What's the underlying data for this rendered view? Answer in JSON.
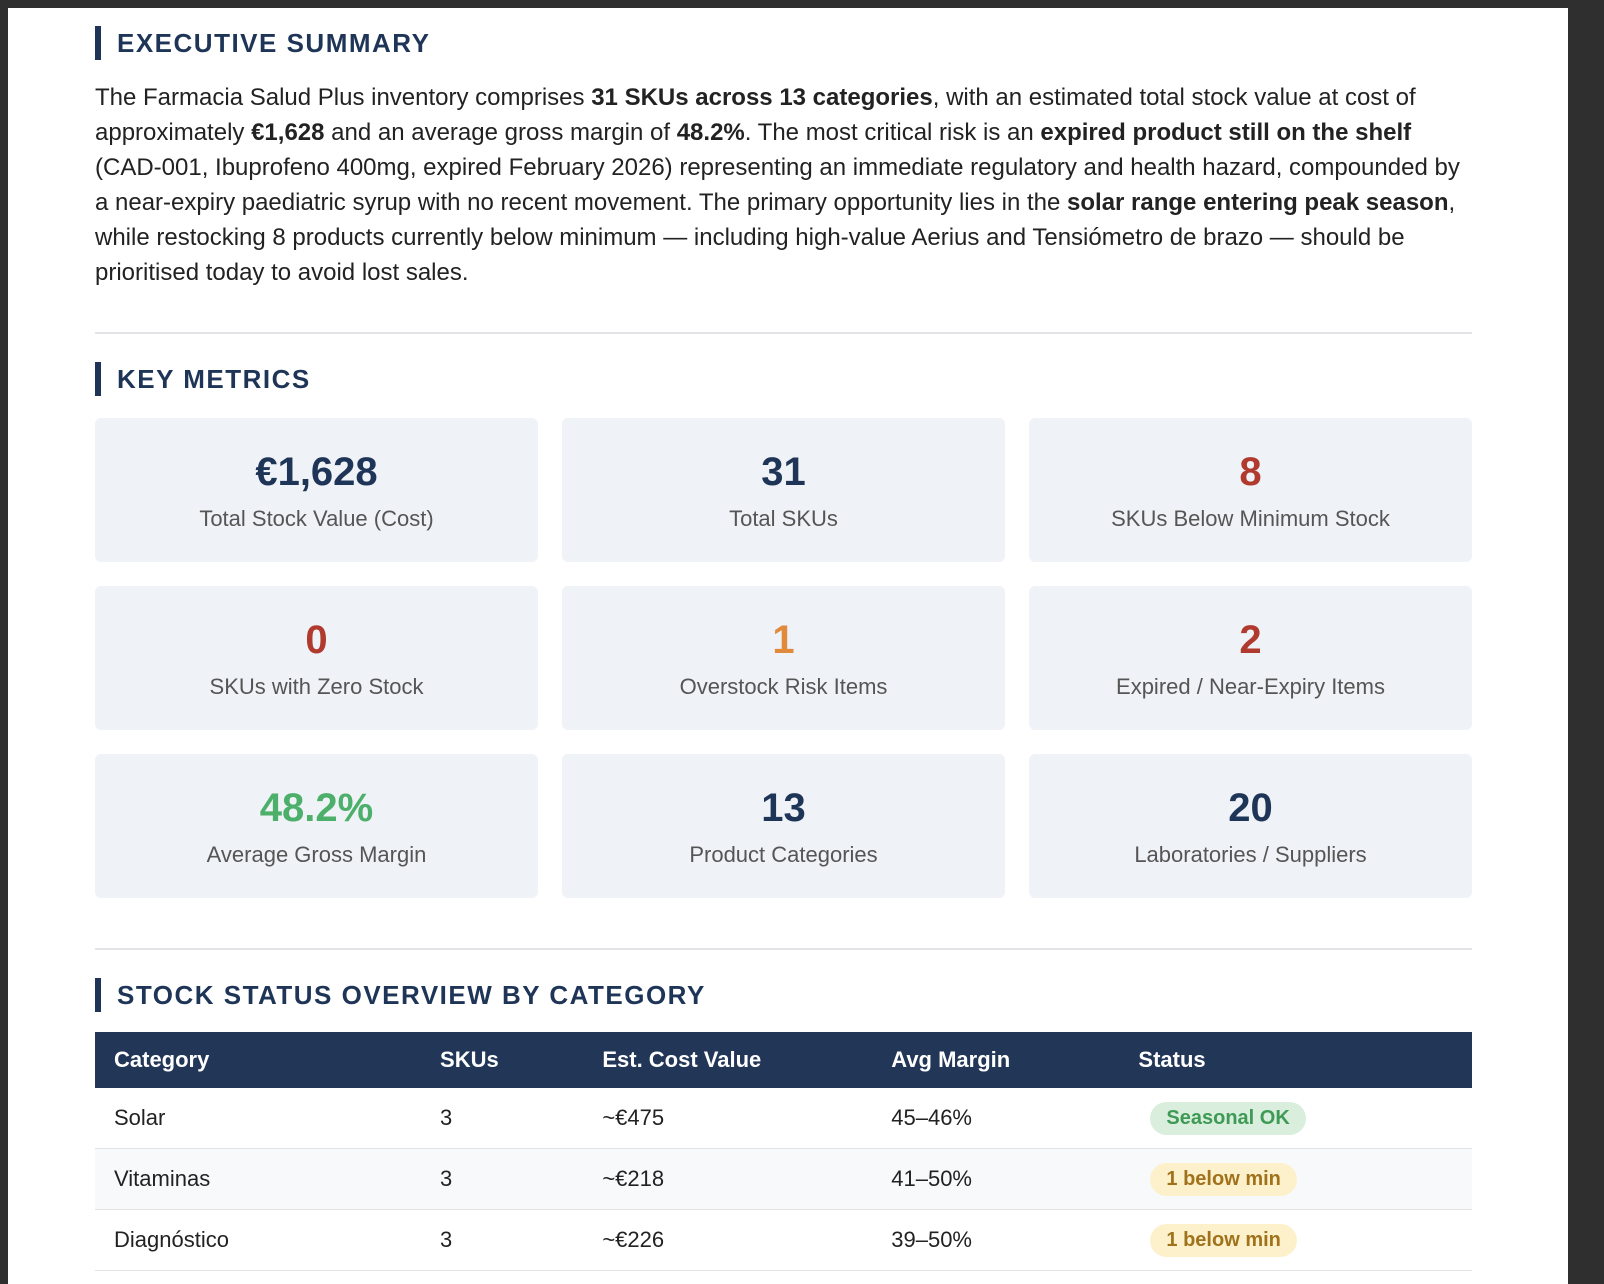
{
  "executive_summary": {
    "title": "EXECUTIVE SUMMARY",
    "paragraph": [
      {
        "text": "The Farmacia Salud Plus inventory comprises ",
        "bold": false
      },
      {
        "text": "31 SKUs across 13 categories",
        "bold": true
      },
      {
        "text": ", with an estimated total stock value at cost of approximately ",
        "bold": false
      },
      {
        "text": "€1,628",
        "bold": true
      },
      {
        "text": " and an average gross margin of ",
        "bold": false
      },
      {
        "text": "48.2%",
        "bold": true
      },
      {
        "text": ". The most critical risk is an ",
        "bold": false
      },
      {
        "text": "expired product still on the shelf",
        "bold": true
      },
      {
        "text": " (CAD-001, Ibuprofeno 400mg, expired February 2026) representing an immediate regulatory and health hazard, compounded by a near-expiry paediatric syrup with no recent movement. The primary opportunity lies in the ",
        "bold": false
      },
      {
        "text": "solar range entering peak season",
        "bold": true
      },
      {
        "text": ", while restocking 8 products currently below minimum — including high-value Aerius and Tensiómetro de brazo — should be prioritised today to avoid lost sales.",
        "bold": false
      }
    ]
  },
  "key_metrics": {
    "title": "KEY METRICS",
    "cards": [
      {
        "value": "€1,628",
        "label": "Total Stock Value (Cost)",
        "color": "#1f3557"
      },
      {
        "value": "31",
        "label": "Total SKUs",
        "color": "#1f3557"
      },
      {
        "value": "8",
        "label": "SKUs Below Minimum Stock",
        "color": "#b03a2e"
      },
      {
        "value": "0",
        "label": "SKUs with Zero Stock",
        "color": "#b03a2e"
      },
      {
        "value": "1",
        "label": "Overstock Risk Items",
        "color": "#e08a3c"
      },
      {
        "value": "2",
        "label": "Expired / Near-Expiry Items",
        "color": "#b03a2e"
      },
      {
        "value": "48.2%",
        "label": "Average Gross Margin",
        "color": "#4caf6a"
      },
      {
        "value": "13",
        "label": "Product Categories",
        "color": "#1f3557"
      },
      {
        "value": "20",
        "label": "Laboratories / Suppliers",
        "color": "#1f3557"
      }
    ]
  },
  "stock_status": {
    "title": "STOCK STATUS OVERVIEW BY CATEGORY",
    "table": {
      "header": [
        "Category",
        "SKUs",
        "Est. Cost Value",
        "Avg Margin",
        "Status"
      ],
      "rows": [
        [
          "Solar",
          "3",
          "~€475",
          "45–46%",
          "Seasonal OK"
        ],
        [
          "Vitaminas",
          "3",
          "~€218",
          "41–50%",
          "1 below min"
        ],
        [
          "Diagnóstico",
          "3",
          "~€226",
          "39–50%",
          "1 below min"
        ]
      ],
      "status_colors": [
        "#3e9a55",
        "#a0721b",
        "#a0721b"
      ],
      "status_backgrounds": [
        "#d9eedd",
        "#fdf1cc",
        "#fdf1cc"
      ]
    }
  }
}
